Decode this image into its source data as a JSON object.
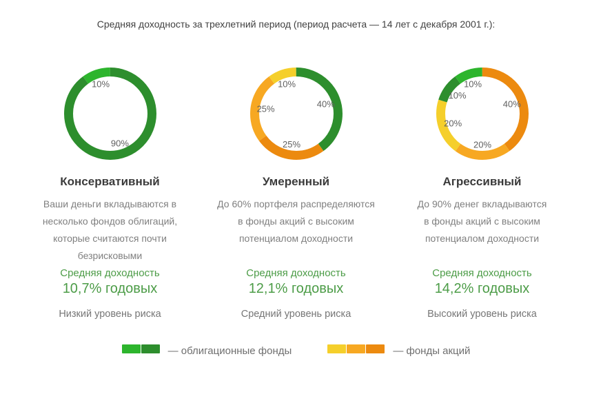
{
  "title": "Средняя доходность за трехлетний период (период расчета — 14 лет с декабря 2001 г.):",
  "colors": {
    "green_light": "#2DB52D",
    "green_dark": "#2D8E2D",
    "yellow": "#F5CF2B",
    "amber": "#F7A822",
    "orange": "#EC8A0F",
    "accent_text": "#4C9C47"
  },
  "portfolios": [
    {
      "name": "Консервативный",
      "description": "Ваши деньги вкладываются в\nнесколько фондов облигаций,\nкоторые считаются почти\nбезрисковыми",
      "return_label": "Средняя доходность",
      "return_value": "10,7% годовых",
      "risk": "Низкий уровень риска"
    },
    {
      "name": "Умеренный",
      "description": "До 60% портфеля распределяются\nв фонды акций с высоким\nпотенциалом доходности",
      "return_label": "Средняя доходность",
      "return_value": "12,1% годовых",
      "risk": "Средний уровень риска"
    },
    {
      "name": "Агрессивный",
      "description": "До 90% денег вкладываются\nв фонды акций с высоким\nпотенциалом доходности",
      "return_label": "Средняя доходность",
      "return_value": "14,2% годовых",
      "risk": "Высокий уровень риска"
    }
  ],
  "chart_data": [
    {
      "type": "pie",
      "donut": true,
      "title": "Консервативный",
      "start_angle": "top",
      "direction": "clockwise",
      "segments": [
        {
          "label": "90%",
          "value": 90,
          "color": "green_dark"
        },
        {
          "label": "10%",
          "value": 10,
          "color": "green_light"
        }
      ]
    },
    {
      "type": "pie",
      "donut": true,
      "title": "Умеренный",
      "start_angle": "top",
      "direction": "clockwise",
      "segments": [
        {
          "label": "40%",
          "value": 40,
          "color": "green_dark"
        },
        {
          "label": "25%",
          "value": 25,
          "color": "orange"
        },
        {
          "label": "25%",
          "value": 25,
          "color": "amber"
        },
        {
          "label": "10%",
          "value": 10,
          "color": "yellow"
        }
      ]
    },
    {
      "type": "pie",
      "donut": true,
      "title": "Агрессивный",
      "start_angle": "top",
      "direction": "clockwise",
      "segments": [
        {
          "label": "40%",
          "value": 40,
          "color": "orange"
        },
        {
          "label": "20%",
          "value": 20,
          "color": "amber"
        },
        {
          "label": "20%",
          "value": 20,
          "color": "yellow"
        },
        {
          "label": "10%",
          "value": 10,
          "color": "green_dark"
        },
        {
          "label": "10%",
          "value": 10,
          "color": "green_light"
        }
      ]
    }
  ],
  "legend": [
    {
      "label": "— облигационные фонды",
      "swatches": [
        "green_light",
        "green_dark"
      ]
    },
    {
      "label": "— фонды акций",
      "swatches": [
        "yellow",
        "amber",
        "orange"
      ]
    }
  ]
}
